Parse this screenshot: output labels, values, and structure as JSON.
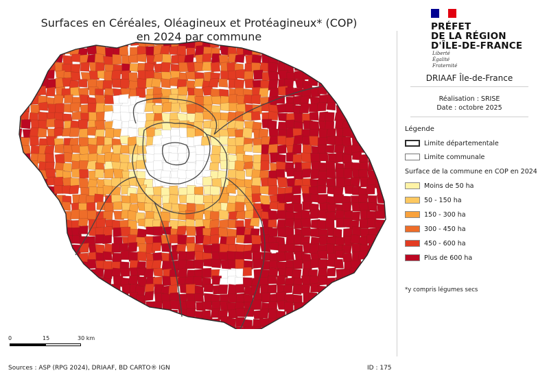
{
  "title": {
    "line1": "Surfaces en Céréales, Oléagineux et Protéagineux* (COP)",
    "line2": "en 2024 par commune"
  },
  "header": {
    "prefet_line1": "PRÉFET",
    "prefet_line2": "DE LA RÉGION",
    "prefet_line3": "D'ÎLE-DE-FRANCE",
    "devise_1": "Liberté",
    "devise_2": "Égalité",
    "devise_3": "Fraternité",
    "service": "DRIAAF Île-de-France",
    "realisation": "Réalisation : SRISE",
    "date": "Date : octobre 2025"
  },
  "legend": {
    "title": "Légende",
    "limite_dep": "Limite départementale",
    "limite_com": "Limite communale",
    "subtitle": "Surface de la commune en COP en 2024",
    "classes": [
      {
        "label": "Moins de 50 ha",
        "color": "#fef3a6"
      },
      {
        "label": "50 - 150 ha",
        "color": "#fdc860"
      },
      {
        "label": "150 - 300 ha",
        "color": "#f9a23c"
      },
      {
        "label": "300 - 450 ha",
        "color": "#ee6d29"
      },
      {
        "label": "450 - 600 ha",
        "color": "#e23b22"
      },
      {
        "label": "Plus de 600 ha",
        "color": "#bb0822"
      }
    ],
    "urban_color": "#ffffff",
    "note": "*y compris légumes secs"
  },
  "scale": {
    "l0": "0",
    "l1": "15",
    "l2": "30 km"
  },
  "footer": {
    "sources": "Sources : ASP (RPG 2024), DRIAAF, BD CARTO® IGN",
    "id": "ID : 175"
  },
  "colors": {
    "flag_blue": "#000091",
    "flag_white": "#ffffff",
    "flag_red": "#e1000f",
    "border": "#444444"
  }
}
